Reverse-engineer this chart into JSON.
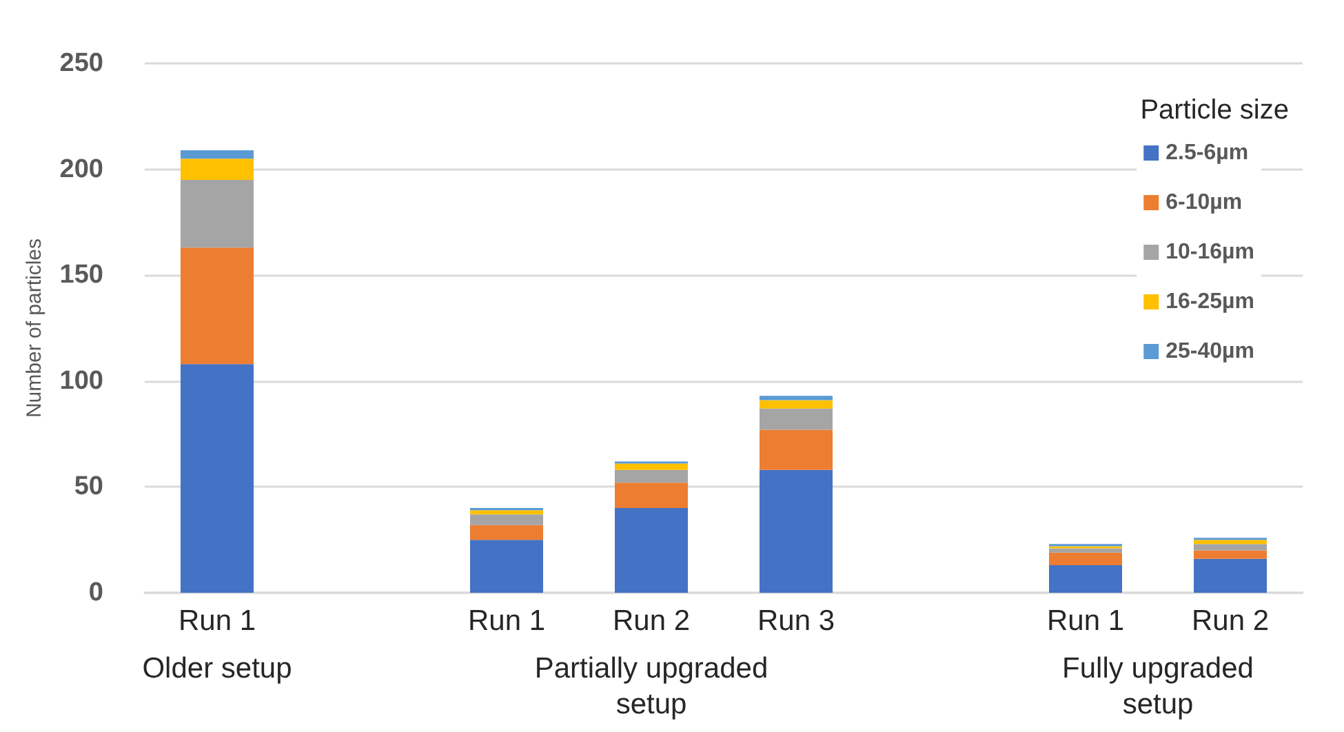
{
  "chart_data": {
    "type": "bar",
    "stacked": true,
    "ylabel": "Number of particles",
    "legend_title": "Particle size",
    "legend": "top right",
    "grid": "y",
    "categories": [
      "Run 1",
      null,
      "Run 1",
      "Run 2",
      "Run 3",
      null,
      "Run 1",
      "Run 2"
    ],
    "ylim": [
      0,
      250
    ],
    "yticks": [
      0,
      50,
      100,
      150,
      200,
      250
    ],
    "annotations": [
      "Older setup",
      "Partially upgraded setup",
      "Fully upgraded setup"
    ],
    "series": [
      {
        "name": "2.5-6µm",
        "color": "#4472c4",
        "values": [
          108,
          null,
          25,
          40,
          58,
          null,
          13,
          16
        ]
      },
      {
        "name": "6-10µm",
        "color": "#ed7d31",
        "values": [
          55,
          null,
          7,
          12,
          19,
          null,
          6,
          4
        ]
      },
      {
        "name": "10-16µm",
        "color": "#a5a5a5",
        "values": [
          32,
          null,
          5,
          6,
          10,
          null,
          2,
          3
        ]
      },
      {
        "name": "16-25µm",
        "color": "#ffc000",
        "values": [
          10,
          null,
          2,
          3,
          4,
          null,
          1,
          2
        ]
      },
      {
        "name": "25-40µm",
        "color": "#5b9bd5",
        "values": [
          4,
          null,
          1,
          1,
          2,
          null,
          1,
          1
        ]
      }
    ]
  }
}
